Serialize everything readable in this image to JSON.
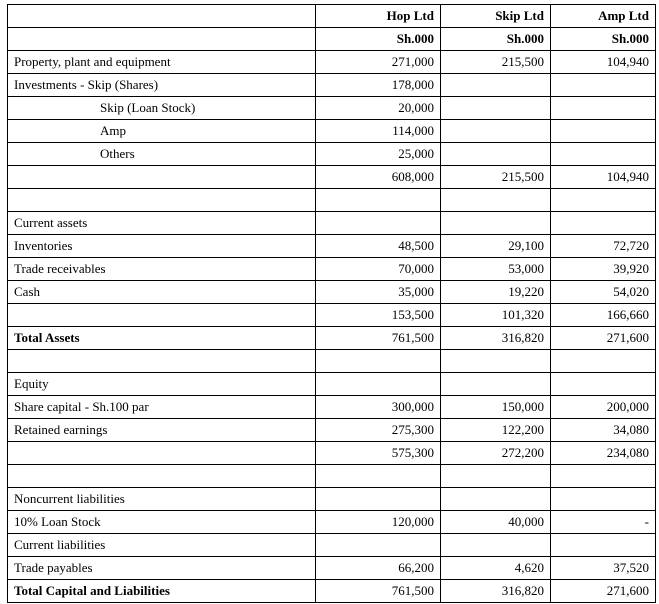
{
  "headers": [
    "",
    "Hop Ltd",
    "Skip Ltd",
    "Amp Ltd"
  ],
  "units": [
    "",
    "Sh.000",
    "Sh.000",
    "Sh.000"
  ],
  "rows": [
    {
      "label": "Property, plant and equipment",
      "hop": "271,000",
      "skip": "215,500",
      "amp": "104,940"
    },
    {
      "label": "Investments  - Skip (Shares)",
      "hop": "178,000",
      "skip": "",
      "amp": ""
    },
    {
      "label": "Skip (Loan Stock)",
      "hop": "20,000",
      "skip": "",
      "amp": "",
      "indent": true
    },
    {
      "label": "Amp",
      "hop": "114,000",
      "skip": "",
      "amp": "",
      "indent": true
    },
    {
      "label": "Others",
      "hop": "25,000",
      "skip": "",
      "amp": "",
      "indent": true
    },
    {
      "label": "",
      "hop": "608,000",
      "skip": "215,500",
      "amp": "104,940"
    },
    {
      "label": "",
      "hop": "",
      "skip": "",
      "amp": ""
    },
    {
      "label": "Current assets",
      "hop": "",
      "skip": "",
      "amp": ""
    },
    {
      "label": "Inventories",
      "hop": "48,500",
      "skip": "29,100",
      "amp": "72,720"
    },
    {
      "label": "Trade receivables",
      "hop": "70,000",
      "skip": "53,000",
      "amp": "39,920"
    },
    {
      "label": "Cash",
      "hop": "35,000",
      "skip": "19,220",
      "amp": "54,020"
    },
    {
      "label": "",
      "hop": "153,500",
      "skip": "101,320",
      "amp": "166,660"
    },
    {
      "label": "Total Assets",
      "hop": "761,500",
      "skip": "316,820",
      "amp": "271,600",
      "bold": true
    },
    {
      "label": "",
      "hop": "",
      "skip": "",
      "amp": ""
    },
    {
      "label": "Equity",
      "hop": "",
      "skip": "",
      "amp": ""
    },
    {
      "label": "Share capital  - Sh.100 par",
      "hop": "300,000",
      "skip": "150,000",
      "amp": "200,000"
    },
    {
      "label": "Retained  earnings",
      "hop": "275,300",
      "skip": "122,200",
      "amp": "34,080"
    },
    {
      "label": "",
      "hop": "575,300",
      "skip": "272,200",
      "amp": "234,080"
    },
    {
      "label": "",
      "hop": "",
      "skip": "",
      "amp": ""
    },
    {
      "label": "Noncurrent  liabilities",
      "hop": "",
      "skip": "",
      "amp": ""
    },
    {
      "label": "10% Loan Stock",
      "hop": "120,000",
      "skip": "40,000",
      "amp": "-"
    },
    {
      "label": "Current  liabilities",
      "hop": "",
      "skip": "",
      "amp": ""
    },
    {
      "label": "Trade payables",
      "hop": "66,200",
      "skip": "4,620",
      "amp": "37,520"
    },
    {
      "label": "Total Capital and Liabilities",
      "hop": "761,500",
      "skip": "316,820",
      "amp": "271,600",
      "bold": true
    }
  ]
}
